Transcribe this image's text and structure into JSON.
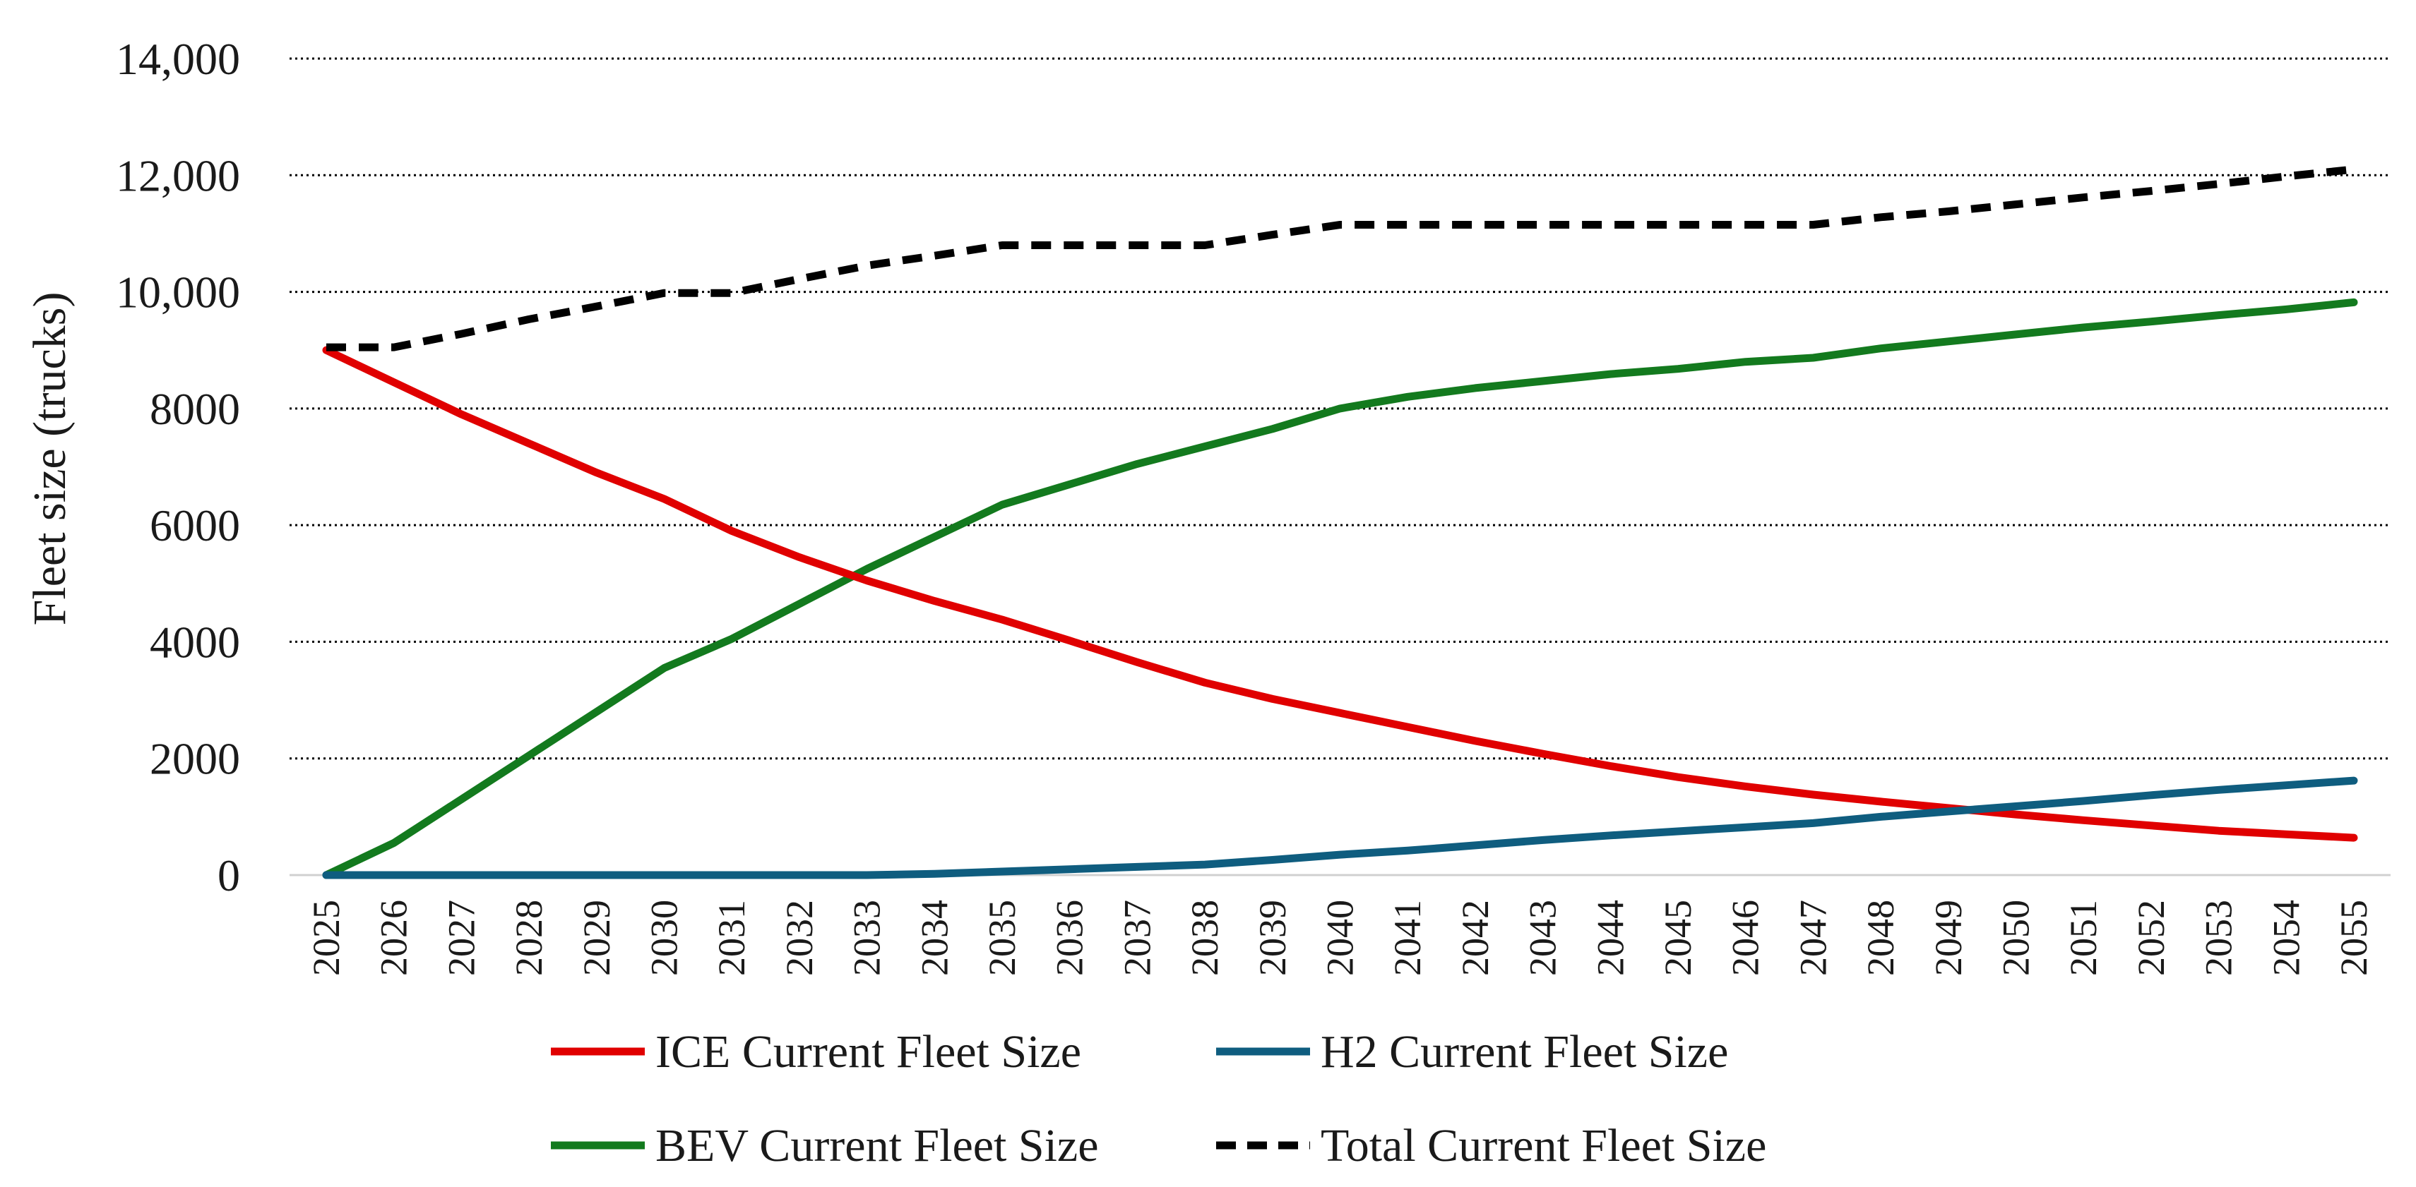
{
  "chart_data": {
    "type": "line",
    "title": "",
    "xlabel": "",
    "ylabel": "Fleet size (trucks)",
    "ylim": [
      0,
      14000
    ],
    "y_ticks": [
      0,
      2000,
      4000,
      6000,
      8000,
      10000,
      12000,
      14000
    ],
    "y_tick_labels": [
      "0",
      "2000",
      "4000",
      "6000",
      "8000",
      "10,000",
      "12,000",
      "14,000"
    ],
    "grid": "horizontal dotted",
    "legend_position": "bottom",
    "x": [
      "2025",
      "2026",
      "2027",
      "2028",
      "2029",
      "2030",
      "2031",
      "2032",
      "2033",
      "2034",
      "2035",
      "2036",
      "2037",
      "2038",
      "2039",
      "2040",
      "2041",
      "2042",
      "2043",
      "2044",
      "2045",
      "2046",
      "2047",
      "2048",
      "2049",
      "2050",
      "2051",
      "2052",
      "2053",
      "2054",
      "2055"
    ],
    "series": [
      {
        "name": "ICE Current Fleet Size",
        "color": "#e00000",
        "style": "solid",
        "values": [
          9000,
          8450,
          7900,
          7400,
          6900,
          6450,
          5900,
          5450,
          5050,
          4700,
          4380,
          4020,
          3650,
          3300,
          3020,
          2780,
          2540,
          2300,
          2080,
          1870,
          1680,
          1520,
          1380,
          1260,
          1150,
          1040,
          940,
          850,
          760,
          700,
          640
        ]
      },
      {
        "name": "H2 Current Fleet Size",
        "color": "#0f5d7f",
        "style": "solid",
        "values": [
          0,
          0,
          0,
          0,
          0,
          0,
          0,
          0,
          0,
          20,
          60,
          100,
          140,
          180,
          260,
          350,
          420,
          510,
          600,
          680,
          750,
          820,
          890,
          1000,
          1090,
          1180,
          1270,
          1370,
          1460,
          1540,
          1620
        ]
      },
      {
        "name": "BEV Current Fleet Size",
        "color": "#137a1e",
        "style": "solid",
        "values": [
          0,
          550,
          1300,
          2050,
          2800,
          3550,
          4050,
          4650,
          5250,
          5800,
          6350,
          6700,
          7050,
          7350,
          7650,
          8000,
          8200,
          8350,
          8470,
          8590,
          8680,
          8800,
          8870,
          9030,
          9150,
          9270,
          9390,
          9490,
          9600,
          9700,
          9820
        ]
      },
      {
        "name": "Total Current Fleet Size",
        "color": "#000000",
        "style": "dashed",
        "values": [
          9050,
          9050,
          9280,
          9530,
          9750,
          9980,
          9980,
          10220,
          10450,
          10620,
          10800,
          10800,
          10800,
          10800,
          10980,
          11150,
          11150,
          11150,
          11150,
          11150,
          11150,
          11150,
          11150,
          11280,
          11380,
          11500,
          11620,
          11730,
          11850,
          11980,
          12100
        ]
      }
    ]
  }
}
